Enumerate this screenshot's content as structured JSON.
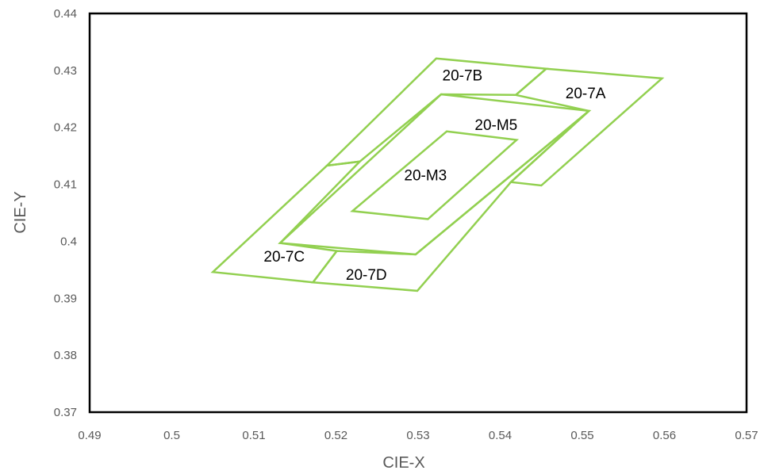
{
  "chart_data": {
    "type": "scatter",
    "title": "",
    "xlabel": "CIE-X",
    "ylabel": "CIE-Y",
    "xlim": [
      0.49,
      0.57
    ],
    "ylim": [
      0.37,
      0.44
    ],
    "x_ticks": [
      "0.49",
      "0.5",
      "0.51",
      "0.52",
      "0.53",
      "0.54",
      "0.55",
      "0.56",
      "0.57"
    ],
    "y_ticks": [
      "0.37",
      "0.38",
      "0.39",
      "0.4",
      "0.41",
      "0.42",
      "0.43",
      "0.44"
    ],
    "grid": false,
    "line_color": "#92d050",
    "regions": [
      {
        "name": "20-7B",
        "points": [
          [
            0.5322,
            0.4321
          ],
          [
            0.5456,
            0.4303
          ],
          [
            0.5419,
            0.4257
          ],
          [
            0.5328,
            0.4258
          ],
          [
            0.5229,
            0.414
          ],
          [
            0.5189,
            0.4133
          ]
        ]
      },
      {
        "name": "20-7A",
        "points": [
          [
            0.5456,
            0.4303
          ],
          [
            0.5597,
            0.4286
          ],
          [
            0.545,
            0.4098
          ],
          [
            0.5413,
            0.4104
          ],
          [
            0.5508,
            0.4229
          ],
          [
            0.5419,
            0.4257
          ]
        ]
      },
      {
        "name": "20-7C",
        "points": [
          [
            0.505,
            0.3946
          ],
          [
            0.5189,
            0.4133
          ],
          [
            0.5229,
            0.414
          ],
          [
            0.5132,
            0.3997
          ],
          [
            0.5201,
            0.3983
          ],
          [
            0.5172,
            0.3928
          ]
        ]
      },
      {
        "name": "20-7D",
        "points": [
          [
            0.5172,
            0.3928
          ],
          [
            0.5299,
            0.3913
          ],
          [
            0.5413,
            0.4104
          ],
          [
            0.5508,
            0.4229
          ],
          [
            0.5297,
            0.3977
          ],
          [
            0.5201,
            0.3983
          ]
        ]
      },
      {
        "name": "20-M5",
        "points": [
          [
            0.5328,
            0.4258
          ],
          [
            0.5508,
            0.4229
          ],
          [
            0.5297,
            0.3977
          ],
          [
            0.5132,
            0.3997
          ]
        ]
      },
      {
        "name": "20-M3",
        "points": [
          [
            0.5335,
            0.4193
          ],
          [
            0.542,
            0.4178
          ],
          [
            0.5312,
            0.4039
          ],
          [
            0.522,
            0.4053
          ]
        ]
      }
    ],
    "annotations": [
      {
        "text": "20-7B",
        "x": 0.5354,
        "y": 0.429
      },
      {
        "text": "20-7A",
        "x": 0.5504,
        "y": 0.4259
      },
      {
        "text": "20-M5",
        "x": 0.5395,
        "y": 0.4203
      },
      {
        "text": "20-M3",
        "x": 0.5309,
        "y": 0.4115
      },
      {
        "text": "20-7C",
        "x": 0.5137,
        "y": 0.3972
      },
      {
        "text": "20-7D",
        "x": 0.5237,
        "y": 0.394
      }
    ]
  }
}
